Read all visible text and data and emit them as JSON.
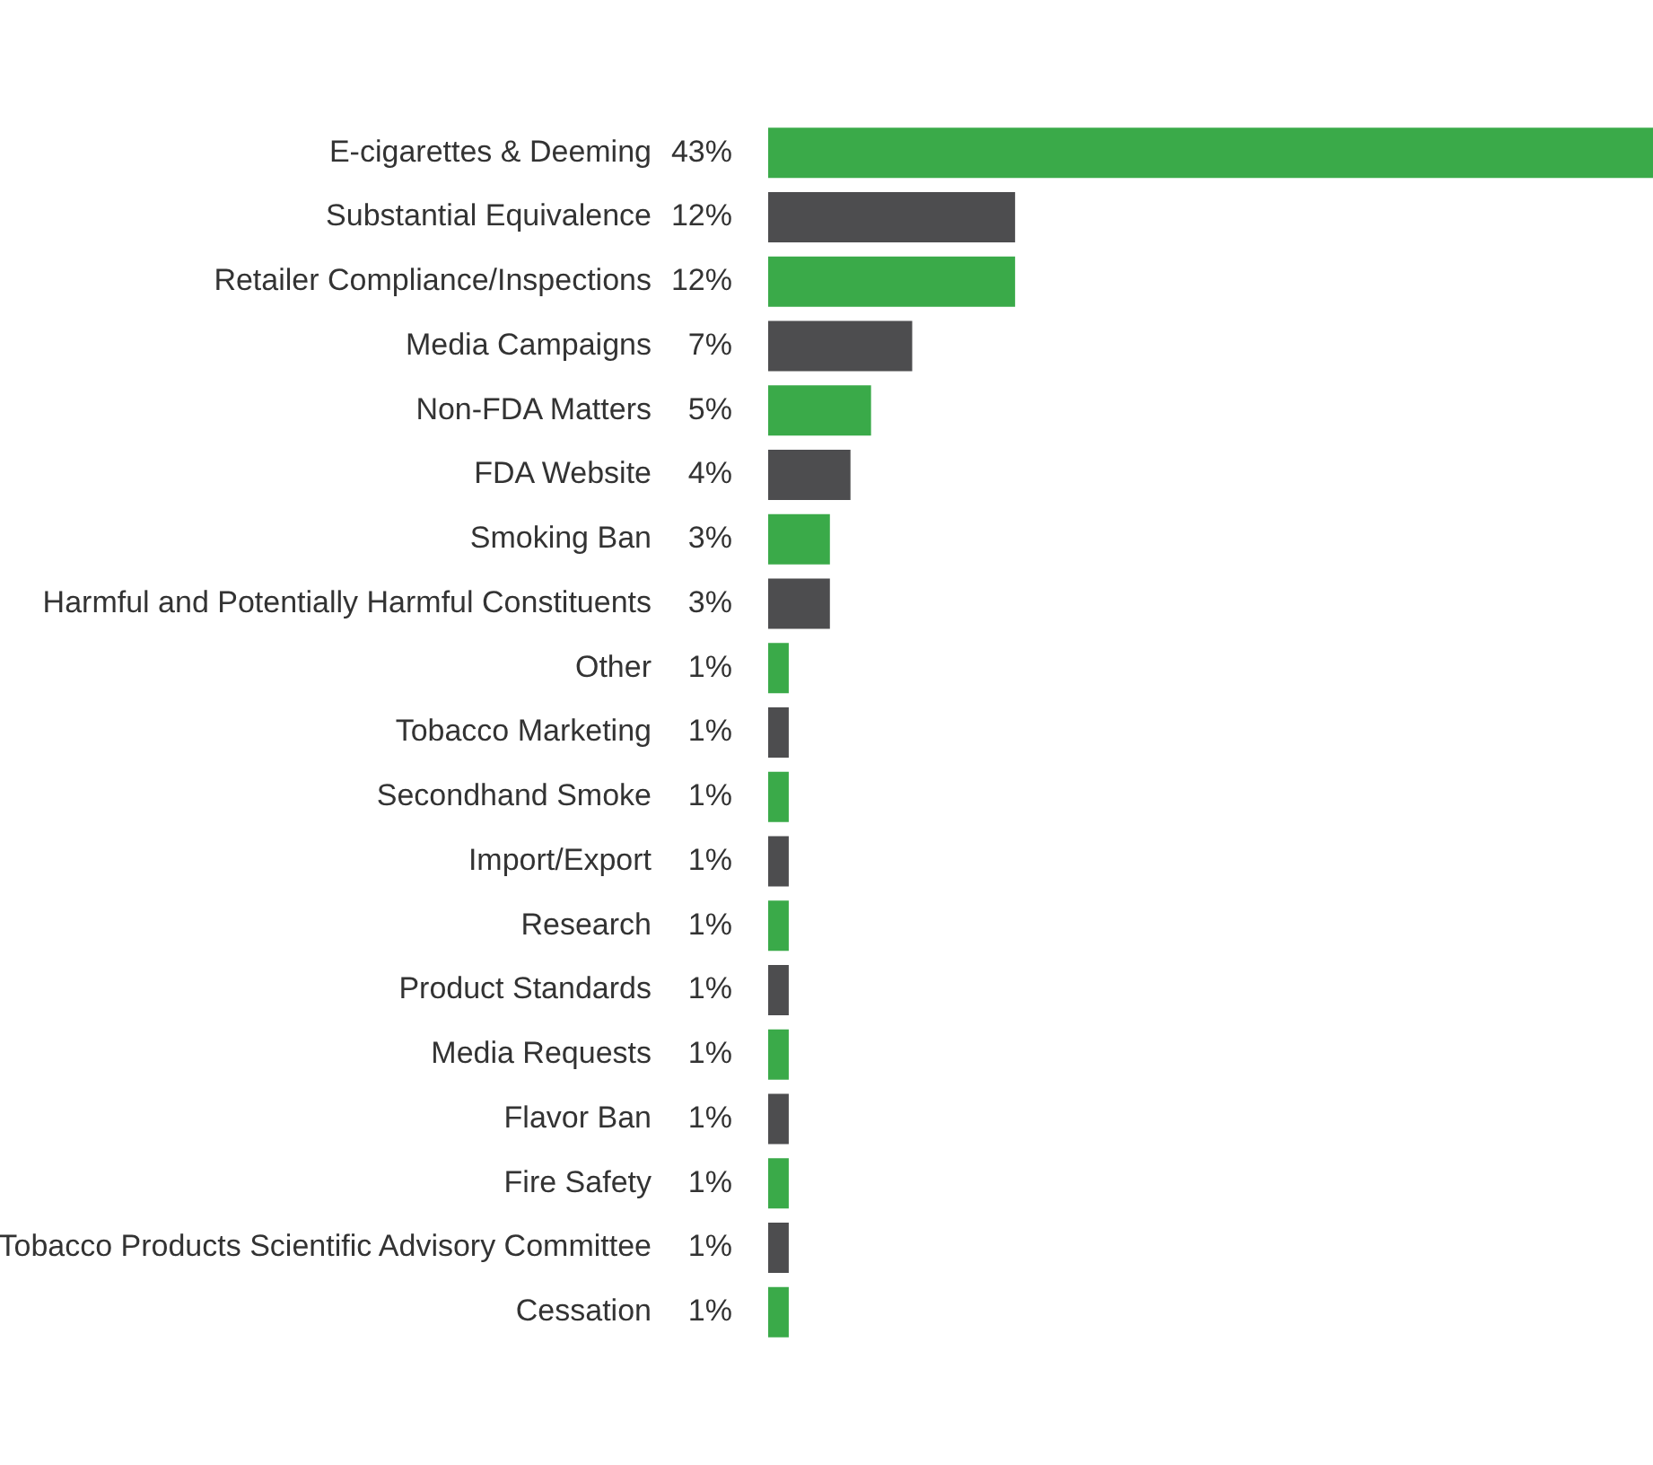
{
  "chart_data": {
    "type": "bar",
    "orientation": "horizontal",
    "categories": [
      "E-cigarettes & Deeming",
      "Substantial Equivalence",
      "Retailer Compliance/Inspections",
      "Media Campaigns",
      "Non-FDA Matters",
      "FDA Website",
      "Smoking Ban",
      "Harmful and Potentially Harmful Constituents",
      "Other",
      "Tobacco Marketing",
      "Secondhand Smoke",
      "Import/Export",
      "Research",
      "Product Standards",
      "Media Requests",
      "Flavor Ban",
      "Fire Safety",
      "Tobacco Products Scientific Advisory Committee",
      "Cessation"
    ],
    "values": [
      43,
      12,
      12,
      7,
      5,
      4,
      3,
      3,
      1,
      1,
      1,
      1,
      1,
      1,
      1,
      1,
      1,
      1,
      1
    ],
    "value_labels": [
      "43%",
      "12%",
      "12%",
      "7%",
      "5%",
      "4%",
      "3%",
      "3%",
      "1%",
      "1%",
      "1%",
      "1%",
      "1%",
      "1%",
      "1%",
      "1%",
      "1%",
      "1%",
      "1%"
    ],
    "colors": [
      "#3aaa49",
      "#4d4d4f",
      "#3aaa49",
      "#4d4d4f",
      "#3aaa49",
      "#4d4d4f",
      "#3aaa49",
      "#4d4d4f",
      "#3aaa49",
      "#4d4d4f",
      "#3aaa49",
      "#4d4d4f",
      "#3aaa49",
      "#4d4d4f",
      "#3aaa49",
      "#4d4d4f",
      "#3aaa49",
      "#4d4d4f",
      "#3aaa49"
    ],
    "xlim": [
      0,
      43
    ],
    "tick_labels": "y",
    "grid": false,
    "legend": false
  }
}
